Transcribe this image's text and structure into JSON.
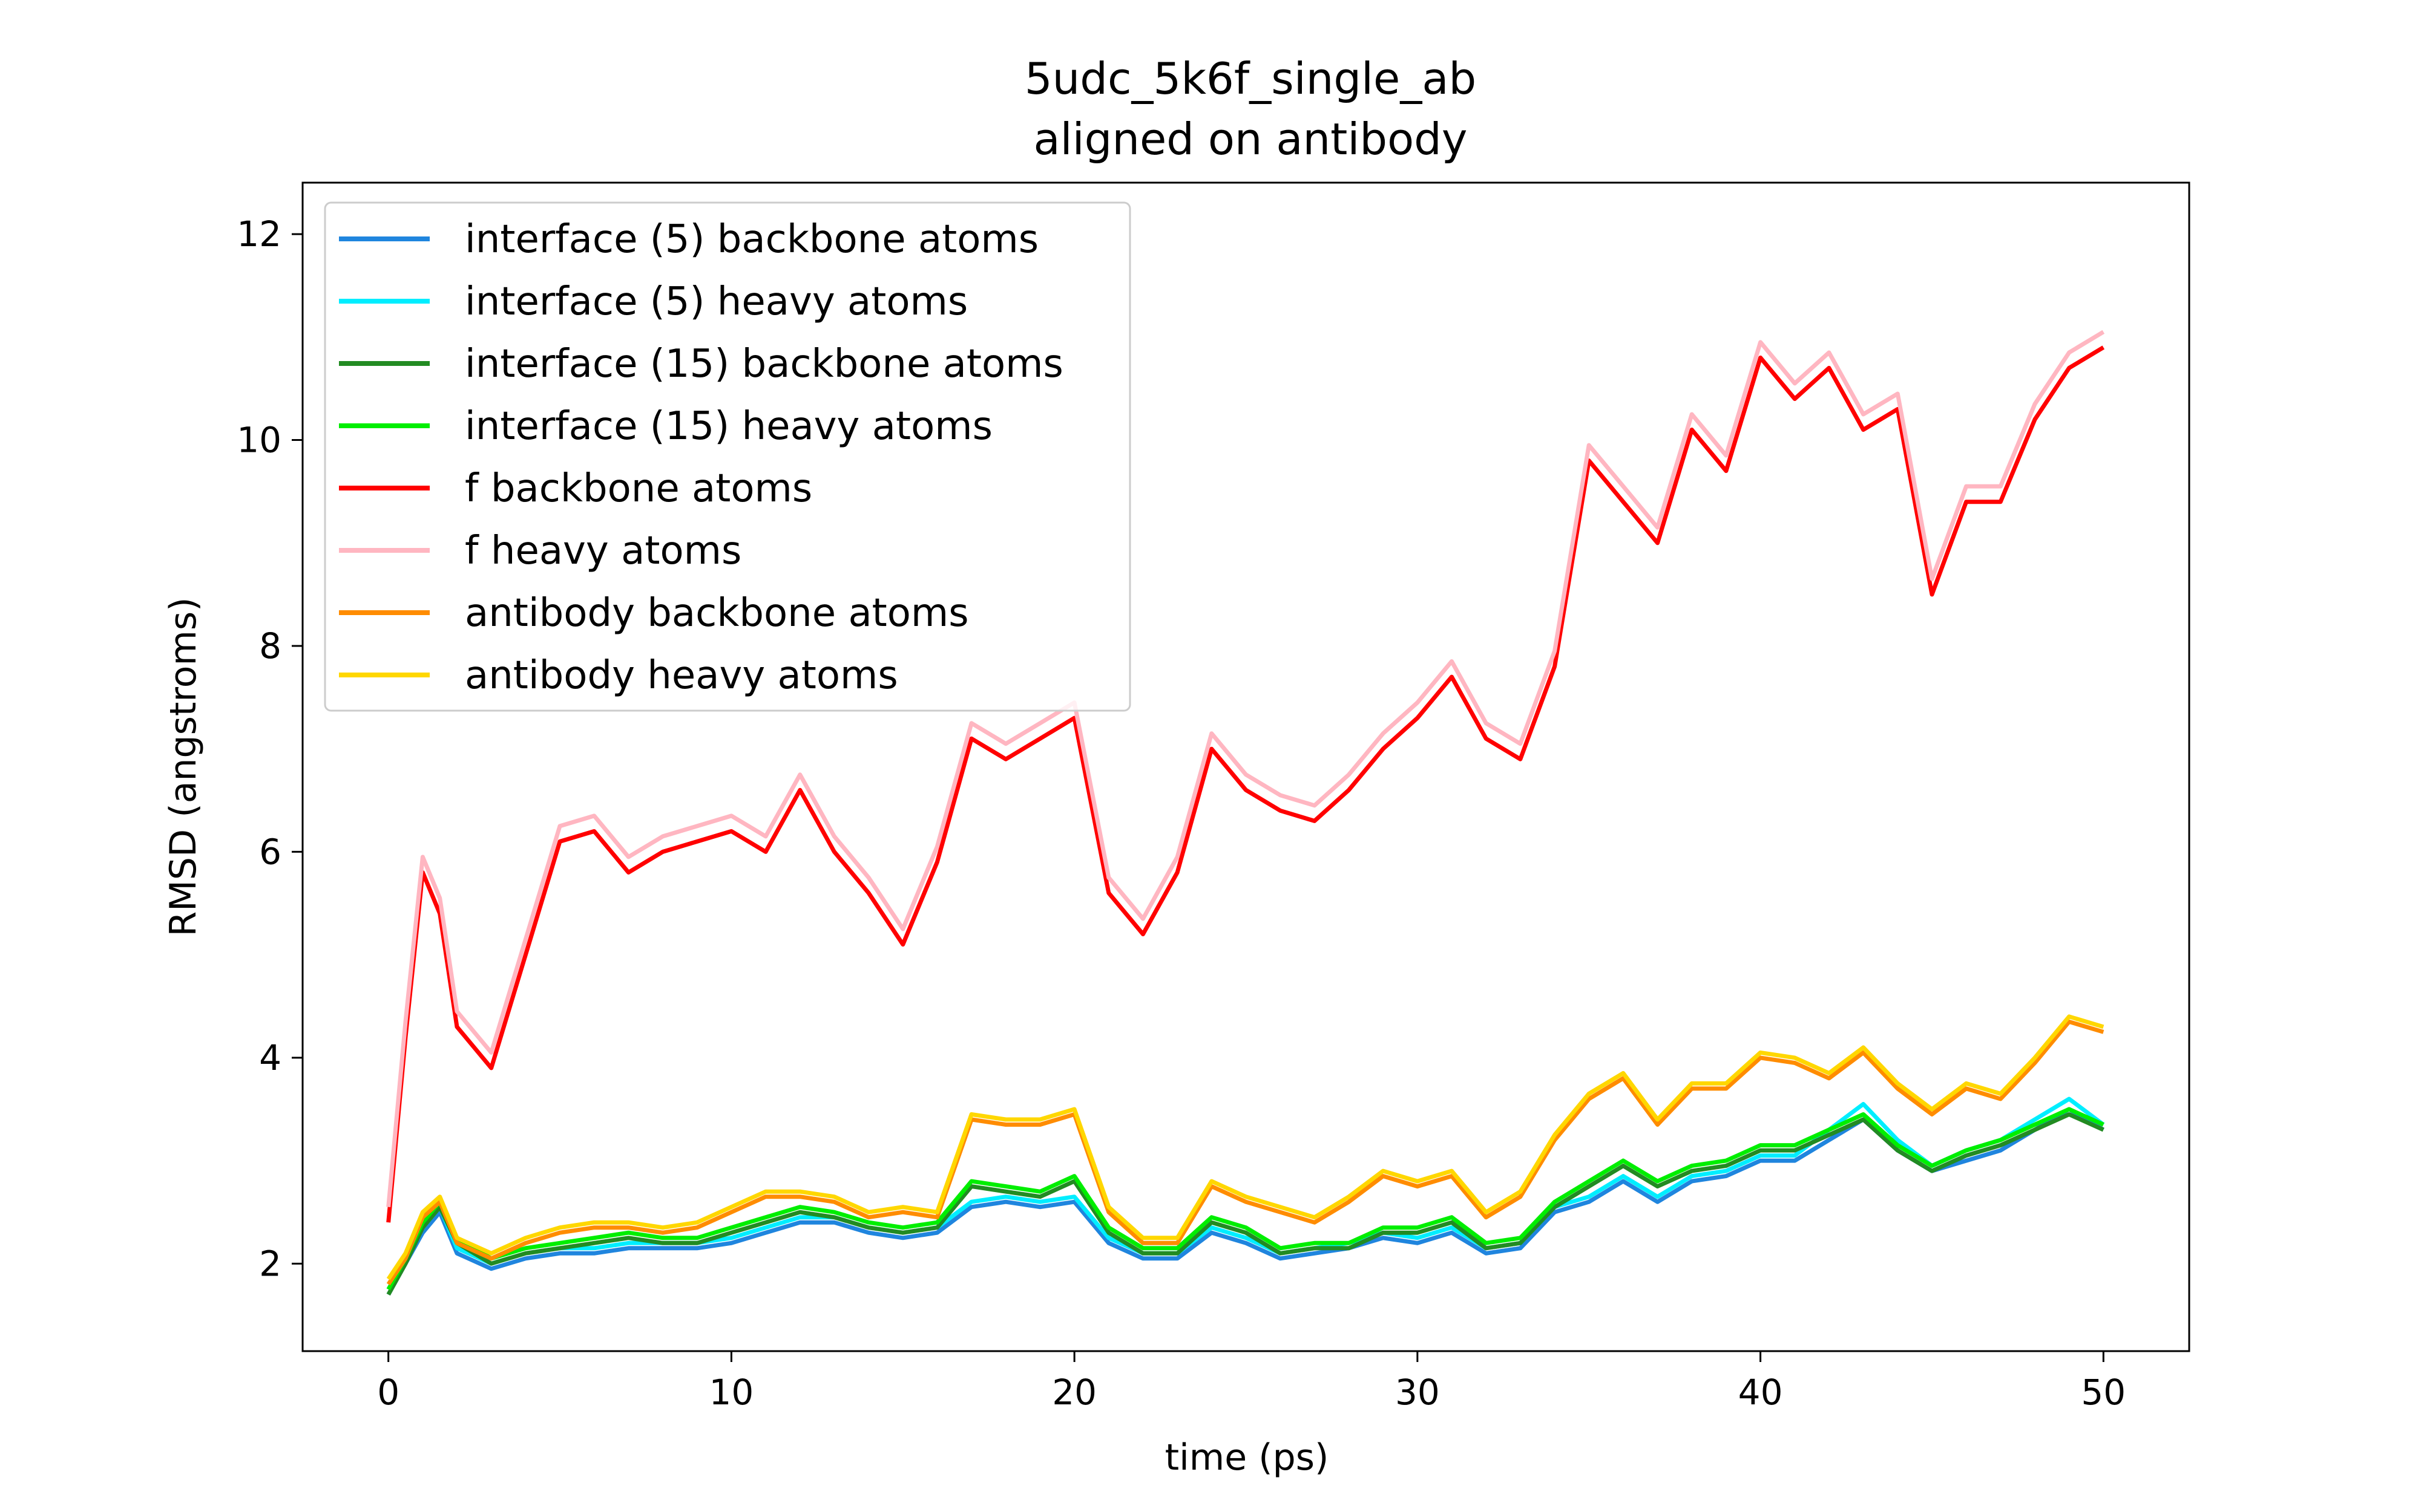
{
  "chart_data": {
    "type": "line",
    "title": "5udc_5k6f_single_ab",
    "subtitle": "aligned on antibody",
    "xlabel": "time (ps)",
    "ylabel": "RMSD (angstroms)",
    "xlim": [
      -2.5,
      52.5
    ],
    "ylim": [
      1.15,
      12.5
    ],
    "xticks": [
      0,
      10,
      20,
      30,
      40,
      50
    ],
    "yticks": [
      2,
      4,
      6,
      8,
      10,
      12
    ],
    "grid": false,
    "legend_position": "top-left",
    "x": [
      0,
      0.5,
      1,
      1.5,
      2,
      3,
      4,
      5,
      6,
      7,
      8,
      9,
      10,
      11,
      12,
      13,
      14,
      15,
      16,
      17,
      18,
      19,
      20,
      21,
      22,
      23,
      24,
      25,
      26,
      27,
      28,
      29,
      30,
      31,
      32,
      33,
      34,
      35,
      36,
      37,
      38,
      39,
      40,
      41,
      42,
      43,
      44,
      45,
      46,
      47,
      48,
      49,
      50
    ],
    "series": [
      {
        "name": "interface (5) backbone atoms",
        "color": "#1f85de",
        "values": [
          1.7,
          2.0,
          2.3,
          2.5,
          2.1,
          1.95,
          2.05,
          2.1,
          2.1,
          2.15,
          2.15,
          2.15,
          2.2,
          2.3,
          2.4,
          2.4,
          2.3,
          2.25,
          2.3,
          2.55,
          2.6,
          2.55,
          2.6,
          2.2,
          2.05,
          2.05,
          2.3,
          2.2,
          2.05,
          2.1,
          2.15,
          2.25,
          2.2,
          2.3,
          2.1,
          2.15,
          2.5,
          2.6,
          2.8,
          2.6,
          2.8,
          2.85,
          3.0,
          3.0,
          3.2,
          3.4,
          3.1,
          2.9,
          3.0,
          3.1,
          3.3,
          3.5,
          3.3
        ]
      },
      {
        "name": "interface (5) heavy atoms",
        "color": "#00eeff",
        "values": [
          1.75,
          2.05,
          2.35,
          2.55,
          2.15,
          2.0,
          2.1,
          2.15,
          2.15,
          2.2,
          2.2,
          2.2,
          2.25,
          2.35,
          2.45,
          2.45,
          2.35,
          2.3,
          2.35,
          2.6,
          2.65,
          2.6,
          2.65,
          2.25,
          2.1,
          2.1,
          2.35,
          2.25,
          2.1,
          2.15,
          2.2,
          2.3,
          2.25,
          2.35,
          2.15,
          2.2,
          2.55,
          2.65,
          2.85,
          2.65,
          2.85,
          2.9,
          3.05,
          3.05,
          3.3,
          3.55,
          3.2,
          2.95,
          3.1,
          3.2,
          3.4,
          3.6,
          3.35
        ]
      },
      {
        "name": "interface (15) backbone atoms",
        "color": "#228b22",
        "values": [
          1.7,
          2.0,
          2.35,
          2.55,
          2.2,
          2.0,
          2.1,
          2.15,
          2.2,
          2.25,
          2.2,
          2.2,
          2.3,
          2.4,
          2.5,
          2.45,
          2.35,
          2.3,
          2.35,
          2.75,
          2.7,
          2.65,
          2.8,
          2.3,
          2.1,
          2.1,
          2.4,
          2.3,
          2.1,
          2.15,
          2.15,
          2.3,
          2.3,
          2.4,
          2.15,
          2.2,
          2.55,
          2.75,
          2.95,
          2.75,
          2.9,
          2.95,
          3.1,
          3.1,
          3.25,
          3.4,
          3.1,
          2.9,
          3.05,
          3.15,
          3.3,
          3.45,
          3.3
        ]
      },
      {
        "name": "interface (15) heavy atoms",
        "color": "#00ee00",
        "values": [
          1.75,
          2.05,
          2.4,
          2.6,
          2.25,
          2.05,
          2.15,
          2.2,
          2.25,
          2.3,
          2.25,
          2.25,
          2.35,
          2.45,
          2.55,
          2.5,
          2.4,
          2.35,
          2.4,
          2.8,
          2.75,
          2.7,
          2.85,
          2.35,
          2.15,
          2.15,
          2.45,
          2.35,
          2.15,
          2.2,
          2.2,
          2.35,
          2.35,
          2.45,
          2.2,
          2.25,
          2.6,
          2.8,
          3.0,
          2.8,
          2.95,
          3.0,
          3.15,
          3.15,
          3.3,
          3.45,
          3.15,
          2.95,
          3.1,
          3.2,
          3.35,
          3.5,
          3.35
        ]
      },
      {
        "name": "f backbone atoms",
        "color": "#ff0000",
        "values": [
          2.4,
          4.2,
          5.8,
          5.4,
          4.3,
          3.9,
          5.0,
          6.1,
          6.2,
          5.8,
          6.0,
          6.1,
          6.2,
          6.0,
          6.6,
          6.0,
          5.6,
          5.1,
          5.9,
          7.1,
          6.9,
          7.1,
          7.3,
          5.6,
          5.2,
          5.8,
          7.0,
          6.6,
          6.4,
          6.3,
          6.6,
          7.0,
          7.3,
          7.7,
          7.1,
          6.9,
          7.8,
          9.8,
          9.4,
          9.0,
          10.1,
          9.7,
          10.8,
          10.4,
          10.7,
          10.1,
          10.3,
          8.5,
          9.4,
          9.4,
          10.2,
          10.7,
          10.9
        ]
      },
      {
        "name": "f heavy atoms",
        "color": "#ffb6c1",
        "values": [
          2.55,
          4.35,
          5.95,
          5.55,
          4.45,
          4.05,
          5.15,
          6.25,
          6.35,
          5.95,
          6.15,
          6.25,
          6.35,
          6.15,
          6.75,
          6.15,
          5.75,
          5.25,
          6.05,
          7.25,
          7.05,
          7.25,
          7.45,
          5.75,
          5.35,
          5.95,
          7.15,
          6.75,
          6.55,
          6.45,
          6.75,
          7.15,
          7.45,
          7.85,
          7.25,
          7.05,
          7.95,
          9.95,
          9.55,
          9.15,
          10.25,
          9.85,
          10.95,
          10.55,
          10.85,
          10.25,
          10.45,
          8.65,
          9.55,
          9.55,
          10.35,
          10.85,
          11.05
        ]
      },
      {
        "name": "antibody backbone atoms",
        "color": "#ff8c00",
        "values": [
          1.8,
          2.05,
          2.45,
          2.6,
          2.2,
          2.05,
          2.2,
          2.3,
          2.35,
          2.35,
          2.3,
          2.35,
          2.5,
          2.65,
          2.65,
          2.6,
          2.45,
          2.5,
          2.45,
          3.4,
          3.35,
          3.35,
          3.45,
          2.5,
          2.2,
          2.2,
          2.75,
          2.6,
          2.5,
          2.4,
          2.6,
          2.85,
          2.75,
          2.85,
          2.45,
          2.65,
          3.2,
          3.6,
          3.8,
          3.35,
          3.7,
          3.7,
          4.0,
          3.95,
          3.8,
          4.05,
          3.7,
          3.45,
          3.7,
          3.6,
          3.95,
          4.35,
          4.25
        ]
      },
      {
        "name": "antibody heavy atoms",
        "color": "#ffd700",
        "values": [
          1.85,
          2.1,
          2.5,
          2.65,
          2.25,
          2.1,
          2.25,
          2.35,
          2.4,
          2.4,
          2.35,
          2.4,
          2.55,
          2.7,
          2.7,
          2.65,
          2.5,
          2.55,
          2.5,
          3.45,
          3.4,
          3.4,
          3.5,
          2.55,
          2.25,
          2.25,
          2.8,
          2.65,
          2.55,
          2.45,
          2.65,
          2.9,
          2.8,
          2.9,
          2.5,
          2.7,
          3.25,
          3.65,
          3.85,
          3.4,
          3.75,
          3.75,
          4.05,
          4.0,
          3.85,
          4.1,
          3.75,
          3.5,
          3.75,
          3.65,
          4.0,
          4.4,
          4.3
        ]
      }
    ]
  }
}
